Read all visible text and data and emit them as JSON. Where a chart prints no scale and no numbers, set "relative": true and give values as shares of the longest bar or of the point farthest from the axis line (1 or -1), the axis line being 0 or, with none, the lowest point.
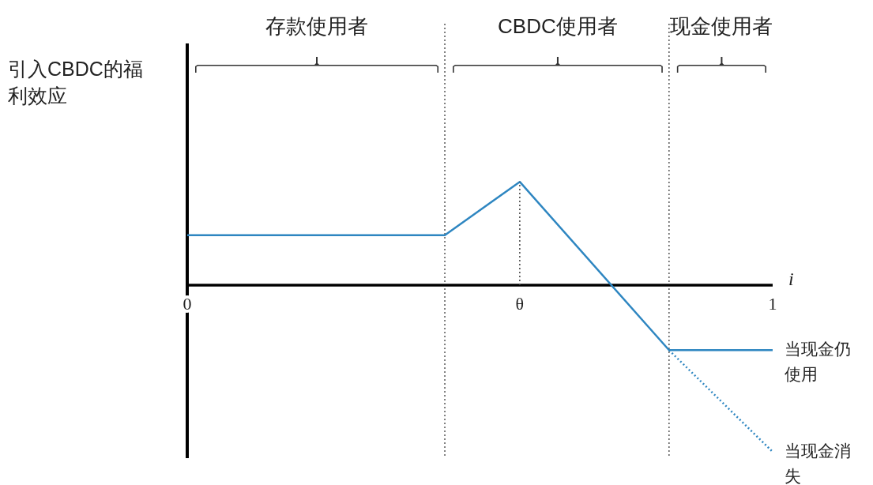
{
  "chart_data": {
    "type": "line",
    "relative": true,
    "ylabel": "引入CBDC的福利效应",
    "xlabel": "i",
    "xlim": [
      0,
      1
    ],
    "xticks": [
      0,
      {
        "value": 0.568,
        "label": "θ"
      },
      1
    ],
    "series": [
      {
        "name": "当现金仍使用",
        "color": "#2e86c1",
        "line_style": "solid",
        "x": [
          0,
          0.44,
          0.568,
          0.823,
          1
        ],
        "values": [
          0.3,
          0.3,
          0.62,
          -0.39,
          -0.39
        ]
      },
      {
        "name": "当现金消失",
        "color": "#2e86c1",
        "line_style": "dotted",
        "x": [
          0.823,
          1
        ],
        "values": [
          -0.39,
          -1
        ]
      },
      {
        "color": "#444444",
        "line_style": "dotted",
        "x": [
          0.568,
          0.568
        ],
        "values": [
          0,
          0.62
        ]
      }
    ],
    "ref_lines": [
      {
        "axis": "x",
        "value": 0.44,
        "color": "#555555",
        "line_style": "dotted"
      },
      {
        "axis": "x",
        "value": 0.823,
        "color": "#555555",
        "line_style": "dotted"
      }
    ],
    "annotations": [
      "存款使用者",
      "CBDC使用者",
      "现金使用者"
    ]
  }
}
